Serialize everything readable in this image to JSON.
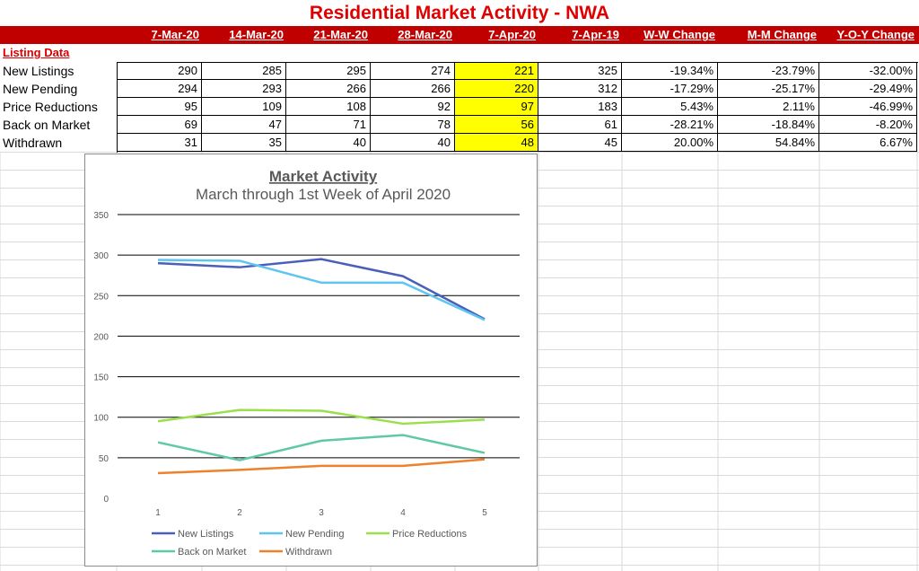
{
  "sheet": {
    "title": "Residential Market Activity - NWA",
    "section_label": "Listing Data",
    "columns": [
      "7-Mar-20",
      "14-Mar-20",
      "21-Mar-20",
      "28-Mar-20",
      "7-Apr-20",
      "7-Apr-19",
      "W-W Change",
      "M-M Change",
      "Y-O-Y Change"
    ],
    "highlight_column_index": 4,
    "highlight_color": "#ffff00",
    "header_color": "#c00000",
    "title_color": "#e00000",
    "rows": [
      {
        "label": "New Listings",
        "values": [
          "290",
          "285",
          "295",
          "274",
          "221",
          "325",
          "-19.34%",
          "-23.79%",
          "-32.00%"
        ]
      },
      {
        "label": "New Pending",
        "values": [
          "294",
          "293",
          "266",
          "266",
          "220",
          "312",
          "-17.29%",
          "-25.17%",
          "-29.49%"
        ]
      },
      {
        "label": "Price Reductions",
        "values": [
          "95",
          "109",
          "108",
          "92",
          "97",
          "183",
          "5.43%",
          "2.11%",
          "-46.99%"
        ]
      },
      {
        "label": "Back on Market",
        "values": [
          "69",
          "47",
          "71",
          "78",
          "56",
          "61",
          "-28.21%",
          "-18.84%",
          "-8.20%"
        ]
      },
      {
        "label": "Withdrawn",
        "values": [
          "31",
          "35",
          "40",
          "40",
          "48",
          "45",
          "20.00%",
          "54.84%",
          "6.67%"
        ]
      }
    ]
  },
  "chart_data": {
    "type": "line",
    "title": "Market Activity",
    "subtitle": "March through 1st Week of April 2020",
    "x": [
      1,
      2,
      3,
      4,
      5
    ],
    "ylim": [
      0,
      350
    ],
    "yticks": [
      0,
      50,
      100,
      150,
      200,
      250,
      300,
      350
    ],
    "grid": true,
    "legend_position": "bottom",
    "series": [
      {
        "name": "New Listings",
        "color": "#4a5fba",
        "values": [
          290,
          285,
          295,
          274,
          221
        ]
      },
      {
        "name": "New Pending",
        "color": "#5ec4f0",
        "values": [
          294,
          293,
          266,
          266,
          220
        ]
      },
      {
        "name": "Price Reductions",
        "color": "#9bdf4d",
        "values": [
          95,
          109,
          108,
          92,
          97
        ]
      },
      {
        "name": "Back on Market",
        "color": "#5fc9a4",
        "values": [
          69,
          47,
          71,
          78,
          56
        ]
      },
      {
        "name": "Withdrawn",
        "color": "#f0812c",
        "values": [
          31,
          35,
          40,
          40,
          48
        ]
      }
    ]
  }
}
